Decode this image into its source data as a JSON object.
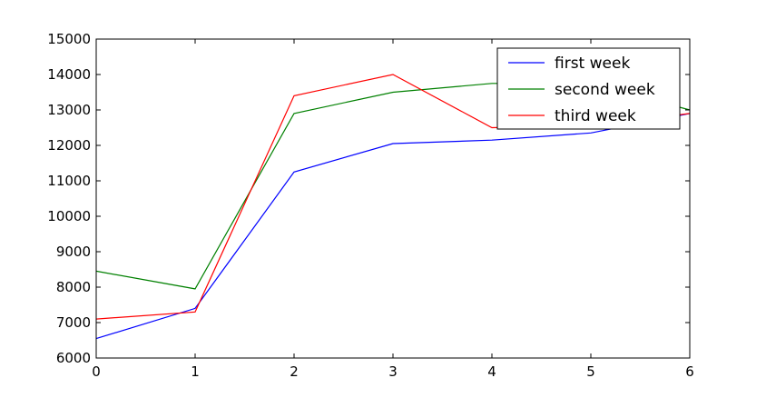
{
  "chart_data": {
    "type": "line",
    "title": "",
    "xlabel": "",
    "ylabel": "",
    "x": [
      0,
      1,
      2,
      3,
      4,
      5,
      6
    ],
    "xlim": [
      0,
      6
    ],
    "ylim": [
      6000,
      15000
    ],
    "xticks": [
      "0",
      "1",
      "2",
      "3",
      "4",
      "5",
      "6"
    ],
    "yticks": [
      "6000",
      "7000",
      "8000",
      "9000",
      "10000",
      "11000",
      "12000",
      "13000",
      "14000",
      "15000"
    ],
    "grid": false,
    "legend_position": "top-right",
    "series": [
      {
        "name": "first week",
        "color": "#0000ff",
        "values": [
          6550,
          7400,
          11250,
          12050,
          12150,
          12350,
          12900
        ]
      },
      {
        "name": "second week",
        "color": "#008000",
        "values": [
          8450,
          7950,
          12900,
          13500,
          13750,
          13750,
          13000
        ]
      },
      {
        "name": "third week",
        "color": "#ff0000",
        "values": [
          7100,
          7300,
          13400,
          14000,
          12500,
          12550,
          12900
        ]
      }
    ]
  }
}
